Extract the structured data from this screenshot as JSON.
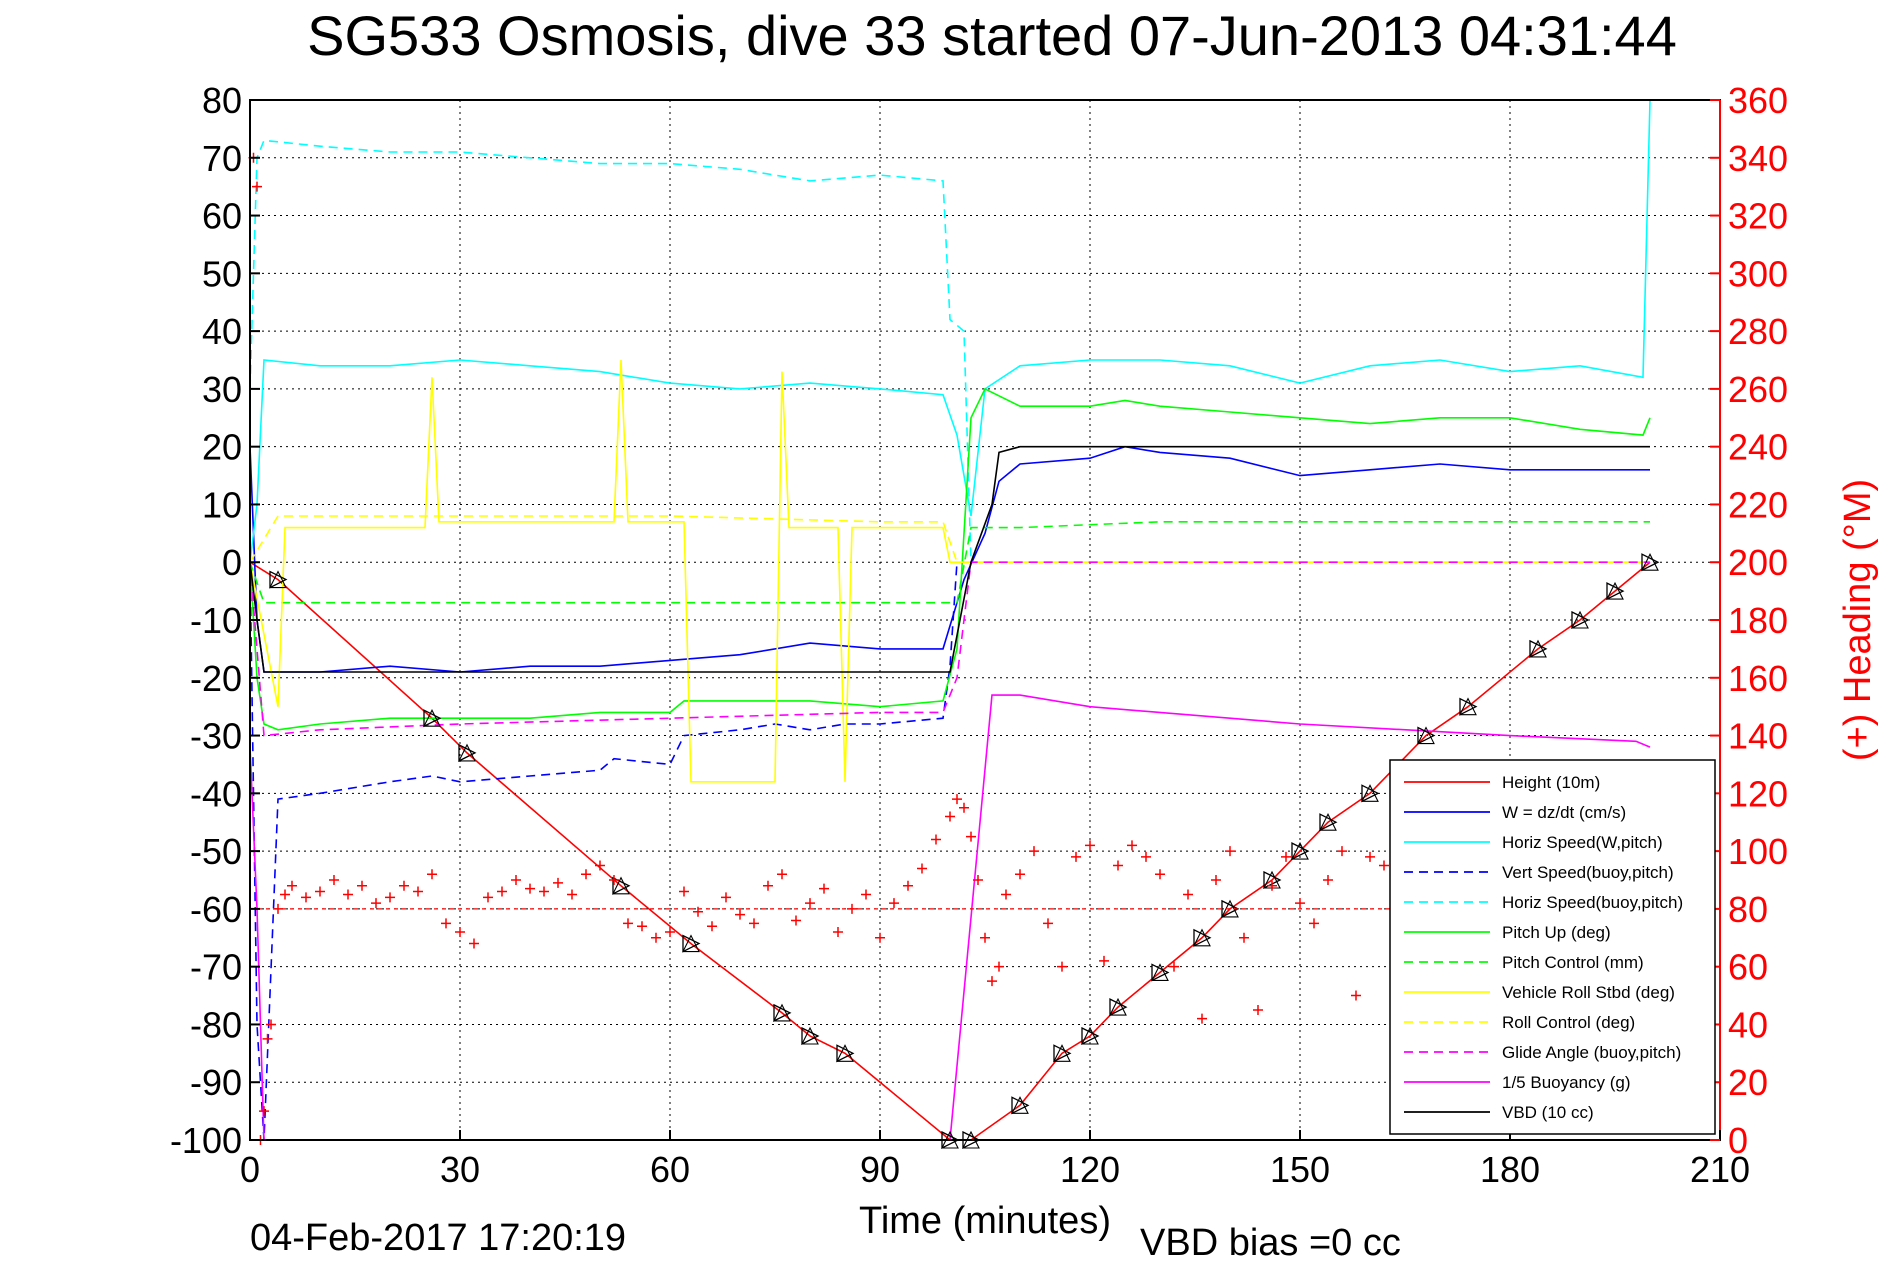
{
  "chart_data": {
    "type": "line",
    "title": "SG533 Osmosis, dive 33 started 07-Jun-2013 04:31:44",
    "xlabel": "Time (minutes)",
    "ylabel_right": "(+) Heading (°M)",
    "footer_left": "04-Feb-2017 17:20:19",
    "footer_right": "VBD bias =0 cc",
    "xlim": [
      0,
      210
    ],
    "ylim": [
      -100,
      80
    ],
    "ylim_right": [
      0,
      360
    ],
    "x_ticks": [
      0,
      30,
      60,
      90,
      120,
      150,
      180,
      210
    ],
    "y_ticks": [
      80,
      70,
      60,
      50,
      40,
      30,
      20,
      10,
      0,
      -10,
      -20,
      -30,
      -40,
      -50,
      -60,
      -70,
      -80,
      -90,
      -100
    ],
    "y_ticks_right": [
      360,
      340,
      320,
      300,
      280,
      260,
      240,
      220,
      200,
      180,
      160,
      140,
      120,
      100,
      80,
      60,
      40,
      20,
      0
    ],
    "grid": true,
    "legend_position": "bottom-right",
    "series": [
      {
        "name": "Height (10m)",
        "color": "#ff0000",
        "style": "solid",
        "x": [
          0,
          4,
          26,
          31,
          53,
          63,
          76,
          80,
          85,
          100,
          103,
          110,
          116,
          120,
          124,
          130,
          136,
          140,
          146,
          150,
          154,
          160,
          168,
          174,
          184,
          190,
          195,
          200
        ],
        "y": [
          0,
          -3,
          -27,
          -33,
          -56,
          -66,
          -78,
          -82,
          -85,
          -100,
          -100,
          -94,
          -85,
          -82,
          -77,
          -71,
          -65,
          -60,
          -55,
          -50,
          -45,
          -40,
          -30,
          -25,
          -15,
          -10,
          -5,
          0
        ]
      },
      {
        "name": "W = dz/dt (cm/s)",
        "color": "#0000ff",
        "style": "solid",
        "x": [
          0,
          1,
          2,
          10,
          20,
          30,
          40,
          50,
          60,
          70,
          80,
          90,
          99,
          102,
          105,
          107,
          110,
          120,
          125,
          130,
          140,
          150,
          160,
          170,
          180,
          190,
          200
        ],
        "y": [
          20,
          -10,
          -19,
          -19,
          -18,
          -19,
          -18,
          -18,
          -17,
          -16,
          -14,
          -15,
          -15,
          -3,
          5,
          14,
          17,
          18,
          20,
          19,
          18,
          15,
          16,
          17,
          16,
          16,
          16
        ]
      },
      {
        "name": "Horiz Speed(W,pitch)",
        "color": "#00ffff",
        "style": "solid",
        "x": [
          0,
          1,
          2,
          10,
          20,
          30,
          40,
          50,
          60,
          70,
          80,
          90,
          99,
          101,
          103,
          105,
          110,
          120,
          130,
          140,
          150,
          160,
          170,
          180,
          190,
          199,
          200
        ],
        "y": [
          0,
          10,
          35,
          34,
          34,
          35,
          34,
          33,
          31,
          30,
          31,
          30,
          29,
          22,
          8,
          30,
          34,
          35,
          35,
          34,
          31,
          34,
          35,
          33,
          34,
          32,
          80
        ]
      },
      {
        "name": "Vert Speed(buoy,pitch)",
        "color": "#0000ff",
        "style": "dashed",
        "x": [
          0,
          1,
          2,
          4,
          10,
          20,
          26,
          30,
          40,
          50,
          52,
          60,
          62,
          70,
          75,
          80,
          85,
          90,
          99,
          100,
          101
        ],
        "y": [
          0,
          -80,
          -100,
          -41,
          -40,
          -38,
          -37,
          -38,
          -37,
          -36,
          -34,
          -35,
          -30,
          -29,
          -28,
          -29,
          -28,
          -28,
          -27,
          -18,
          0
        ]
      },
      {
        "name": "Horiz Speed(buoy,pitch)",
        "color": "#00ffff",
        "style": "dashed",
        "x": [
          0,
          1,
          2,
          10,
          20,
          30,
          40,
          50,
          60,
          70,
          80,
          90,
          99,
          100,
          101,
          102,
          103
        ],
        "y": [
          30,
          70,
          73,
          72,
          71,
          71,
          70,
          69,
          69,
          68,
          66,
          67,
          66,
          42,
          41,
          40,
          0
        ]
      },
      {
        "name": "Pitch Up (deg)",
        "color": "#00ff00",
        "style": "solid",
        "x": [
          0,
          1,
          2,
          4,
          10,
          20,
          30,
          40,
          50,
          60,
          62,
          70,
          80,
          90,
          99,
          101,
          103,
          105,
          110,
          120,
          125,
          130,
          140,
          150,
          160,
          170,
          180,
          190,
          199,
          200
        ],
        "y": [
          0,
          -20,
          -28,
          -29,
          -28,
          -27,
          -27,
          -27,
          -26,
          -26,
          -24,
          -24,
          -24,
          -25,
          -24,
          -15,
          25,
          30,
          27,
          27,
          28,
          27,
          26,
          25,
          24,
          25,
          25,
          23,
          22,
          25
        ]
      },
      {
        "name": "Pitch Control (mm)",
        "color": "#00ff00",
        "style": "dashed",
        "x": [
          0,
          2,
          10,
          30,
          60,
          90,
          99,
          101,
          103,
          110,
          130,
          150,
          170,
          190,
          200
        ],
        "y": [
          0,
          -7,
          -7,
          -7,
          -7,
          -7,
          -7,
          -7,
          6,
          6,
          7,
          7,
          7,
          7,
          7
        ]
      },
      {
        "name": "Vehicle Roll Stbd (deg)",
        "color": "#ffff00",
        "style": "solid",
        "x": [
          0,
          4,
          5,
          25,
          26,
          27,
          52,
          53,
          54,
          62,
          63,
          75,
          76,
          77,
          84,
          85,
          86,
          99,
          100,
          102,
          110,
          120,
          130,
          140,
          150,
          160,
          170,
          180,
          190,
          200
        ],
        "y": [
          0,
          -25,
          6,
          6,
          32,
          7,
          7,
          35,
          7,
          7,
          -38,
          -38,
          33,
          6,
          6,
          -38,
          6,
          6,
          0,
          0,
          0,
          0,
          0,
          0,
          0,
          0,
          0,
          0,
          0,
          0
        ]
      },
      {
        "name": "Roll Control (deg)",
        "color": "#ffff00",
        "style": "dashed",
        "x": [
          0,
          4,
          10,
          30,
          60,
          90,
          99,
          101,
          103,
          130,
          160,
          190,
          200
        ],
        "y": [
          0,
          8,
          8,
          8,
          8,
          7,
          7,
          0,
          0,
          0,
          0,
          0,
          0
        ]
      },
      {
        "name": "Glide Angle (buoy,pitch)",
        "color": "#ff00ff",
        "style": "dashed",
        "x": [
          0,
          2,
          10,
          30,
          60,
          90,
          99,
          101,
          103,
          120,
          150,
          180,
          200
        ],
        "y": [
          0,
          -30,
          -29,
          -28,
          -27,
          -26,
          -26,
          -20,
          0,
          0,
          0,
          0,
          0
        ]
      },
      {
        "name": "1/5 Buoyancy (g)",
        "color": "#ff00ff",
        "style": "solid",
        "x": [
          0,
          1,
          2,
          100,
          106,
          110,
          120,
          150,
          180,
          198,
          200
        ],
        "y": [
          -32,
          -60,
          -100,
          -100,
          -23,
          -23,
          -25,
          -28,
          -30,
          -31,
          -32
        ]
      },
      {
        "name": "VBD (10 cc)",
        "color": "#000000",
        "style": "solid",
        "x": [
          0,
          1,
          2,
          10,
          30,
          60,
          90,
          100,
          103,
          106,
          107,
          110,
          150,
          180,
          200
        ],
        "y": [
          0,
          -10,
          -19,
          -19,
          -19,
          -19,
          -19,
          -19,
          0,
          10,
          19,
          20,
          20,
          20,
          20
        ]
      }
    ],
    "heading": {
      "name": "Heading",
      "axis": "right",
      "color": "#ff0000",
      "marker": "+",
      "target_line": 80,
      "x": [
        0.5,
        1,
        1.5,
        2,
        2.5,
        3,
        4,
        5,
        6,
        8,
        10,
        12,
        14,
        16,
        18,
        20,
        22,
        24,
        26,
        28,
        30,
        32,
        34,
        36,
        38,
        40,
        42,
        44,
        46,
        48,
        50,
        52,
        54,
        56,
        58,
        60,
        62,
        64,
        66,
        68,
        70,
        72,
        74,
        76,
        78,
        80,
        82,
        84,
        86,
        88,
        90,
        92,
        94,
        96,
        98,
        100,
        101,
        102,
        103,
        104,
        105,
        106,
        107,
        108,
        110,
        112,
        114,
        116,
        118,
        120,
        122,
        124,
        126,
        128,
        130,
        132,
        134,
        136,
        138,
        140,
        142,
        144,
        146,
        148,
        150,
        152,
        154,
        156,
        158,
        160,
        162,
        164,
        166,
        168
      ],
      "y": [
        340,
        330,
        0,
        10,
        35,
        40,
        80,
        85,
        88,
        84,
        86,
        90,
        85,
        88,
        82,
        84,
        88,
        86,
        92,
        75,
        72,
        68,
        84,
        86,
        90,
        87,
        86,
        89,
        85,
        92,
        95,
        90,
        75,
        74,
        70,
        72,
        86,
        79,
        74,
        84,
        78,
        75,
        88,
        92,
        76,
        82,
        87,
        72,
        80,
        85,
        70,
        82,
        88,
        94,
        104,
        112,
        118,
        115,
        105,
        90,
        70,
        55,
        60,
        85,
        92,
        100,
        75,
        60,
        98,
        102,
        62,
        95,
        102,
        98,
        92,
        60,
        85,
        42,
        90,
        100,
        70,
        45,
        88,
        98,
        82,
        75,
        90,
        100,
        50,
        98,
        95,
        86,
        70,
        85
      ]
    }
  }
}
